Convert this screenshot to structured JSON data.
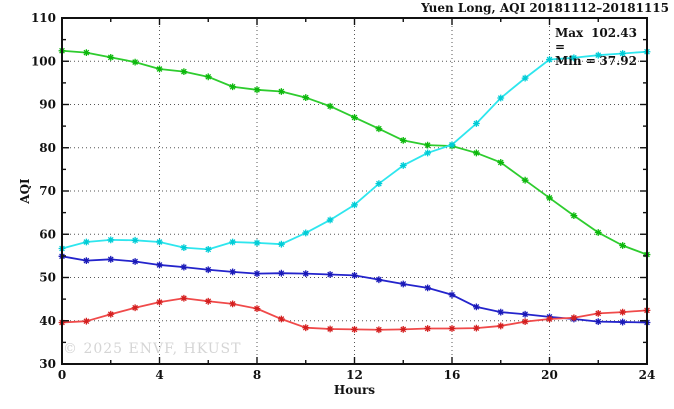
{
  "chart_data": {
    "type": "line",
    "title": "Yuen Long, AQI 20181112–20181115",
    "xlabel": "Hours",
    "ylabel": "AQI",
    "xlim": [
      0,
      24
    ],
    "ylim": [
      30,
      110
    ],
    "x_ticks": [
      0,
      4,
      8,
      12,
      16,
      20,
      24
    ],
    "x_minor_ticks": [
      2,
      6,
      10,
      14,
      18,
      22
    ],
    "y_ticks": [
      30,
      40,
      50,
      60,
      70,
      80,
      90,
      100,
      110
    ],
    "y_minor_ticks": [
      35,
      45,
      55,
      65,
      75,
      85,
      95,
      105
    ],
    "grid": "dotted-at-major-ticks",
    "legend": "none",
    "x": [
      0,
      1,
      2,
      3,
      4,
      5,
      6,
      7,
      8,
      9,
      10,
      11,
      12,
      13,
      14,
      15,
      16,
      17,
      18,
      19,
      20,
      21,
      22,
      23,
      24
    ],
    "series": [
      {
        "name": "green-series",
        "color": "#2ecc2e",
        "marker_color": "#0db80d",
        "values": [
          102.43,
          102.0,
          100.9,
          99.8,
          98.2,
          97.6,
          96.4,
          94.1,
          93.4,
          93.0,
          91.6,
          89.6,
          87.0,
          84.4,
          81.7,
          80.6,
          80.4,
          78.8,
          76.6,
          72.5,
          68.4,
          64.3,
          60.4,
          57.4,
          55.3
        ]
      },
      {
        "name": "cyan-series",
        "color": "#2ee6ee",
        "marker_color": "#00ccd6",
        "values": [
          56.7,
          58.2,
          58.7,
          58.6,
          58.2,
          56.9,
          56.5,
          58.2,
          58.0,
          57.7,
          60.3,
          63.3,
          66.8,
          71.7,
          75.9,
          78.8,
          80.7,
          85.6,
          91.5,
          96.1,
          100.4,
          100.8,
          101.4,
          101.8,
          102.2
        ]
      },
      {
        "name": "blue-series",
        "color": "#2424cc",
        "marker_color": "#1a1ab8",
        "values": [
          54.9,
          53.9,
          54.2,
          53.7,
          52.9,
          52.4,
          51.8,
          51.3,
          50.9,
          51.0,
          50.9,
          50.7,
          50.5,
          49.5,
          48.5,
          47.6,
          46.0,
          43.2,
          42.0,
          41.5,
          40.9,
          40.4,
          39.8,
          39.7,
          39.6
        ]
      },
      {
        "name": "red-series",
        "color": "#f04a4a",
        "marker_color": "#d42020",
        "values": [
          39.6,
          39.9,
          41.5,
          43.0,
          44.3,
          45.2,
          44.5,
          43.9,
          42.8,
          40.4,
          38.4,
          38.1,
          38.0,
          37.92,
          38.0,
          38.2,
          38.2,
          38.3,
          38.8,
          39.8,
          40.4,
          40.7,
          41.7,
          42.0,
          42.4
        ]
      }
    ],
    "annotation": {
      "max_label": "Max =",
      "max_value": "102.43",
      "min_label": "Min =",
      "min_value": "37.92"
    },
    "watermark": "© 2025 ENVF, HKUST"
  }
}
